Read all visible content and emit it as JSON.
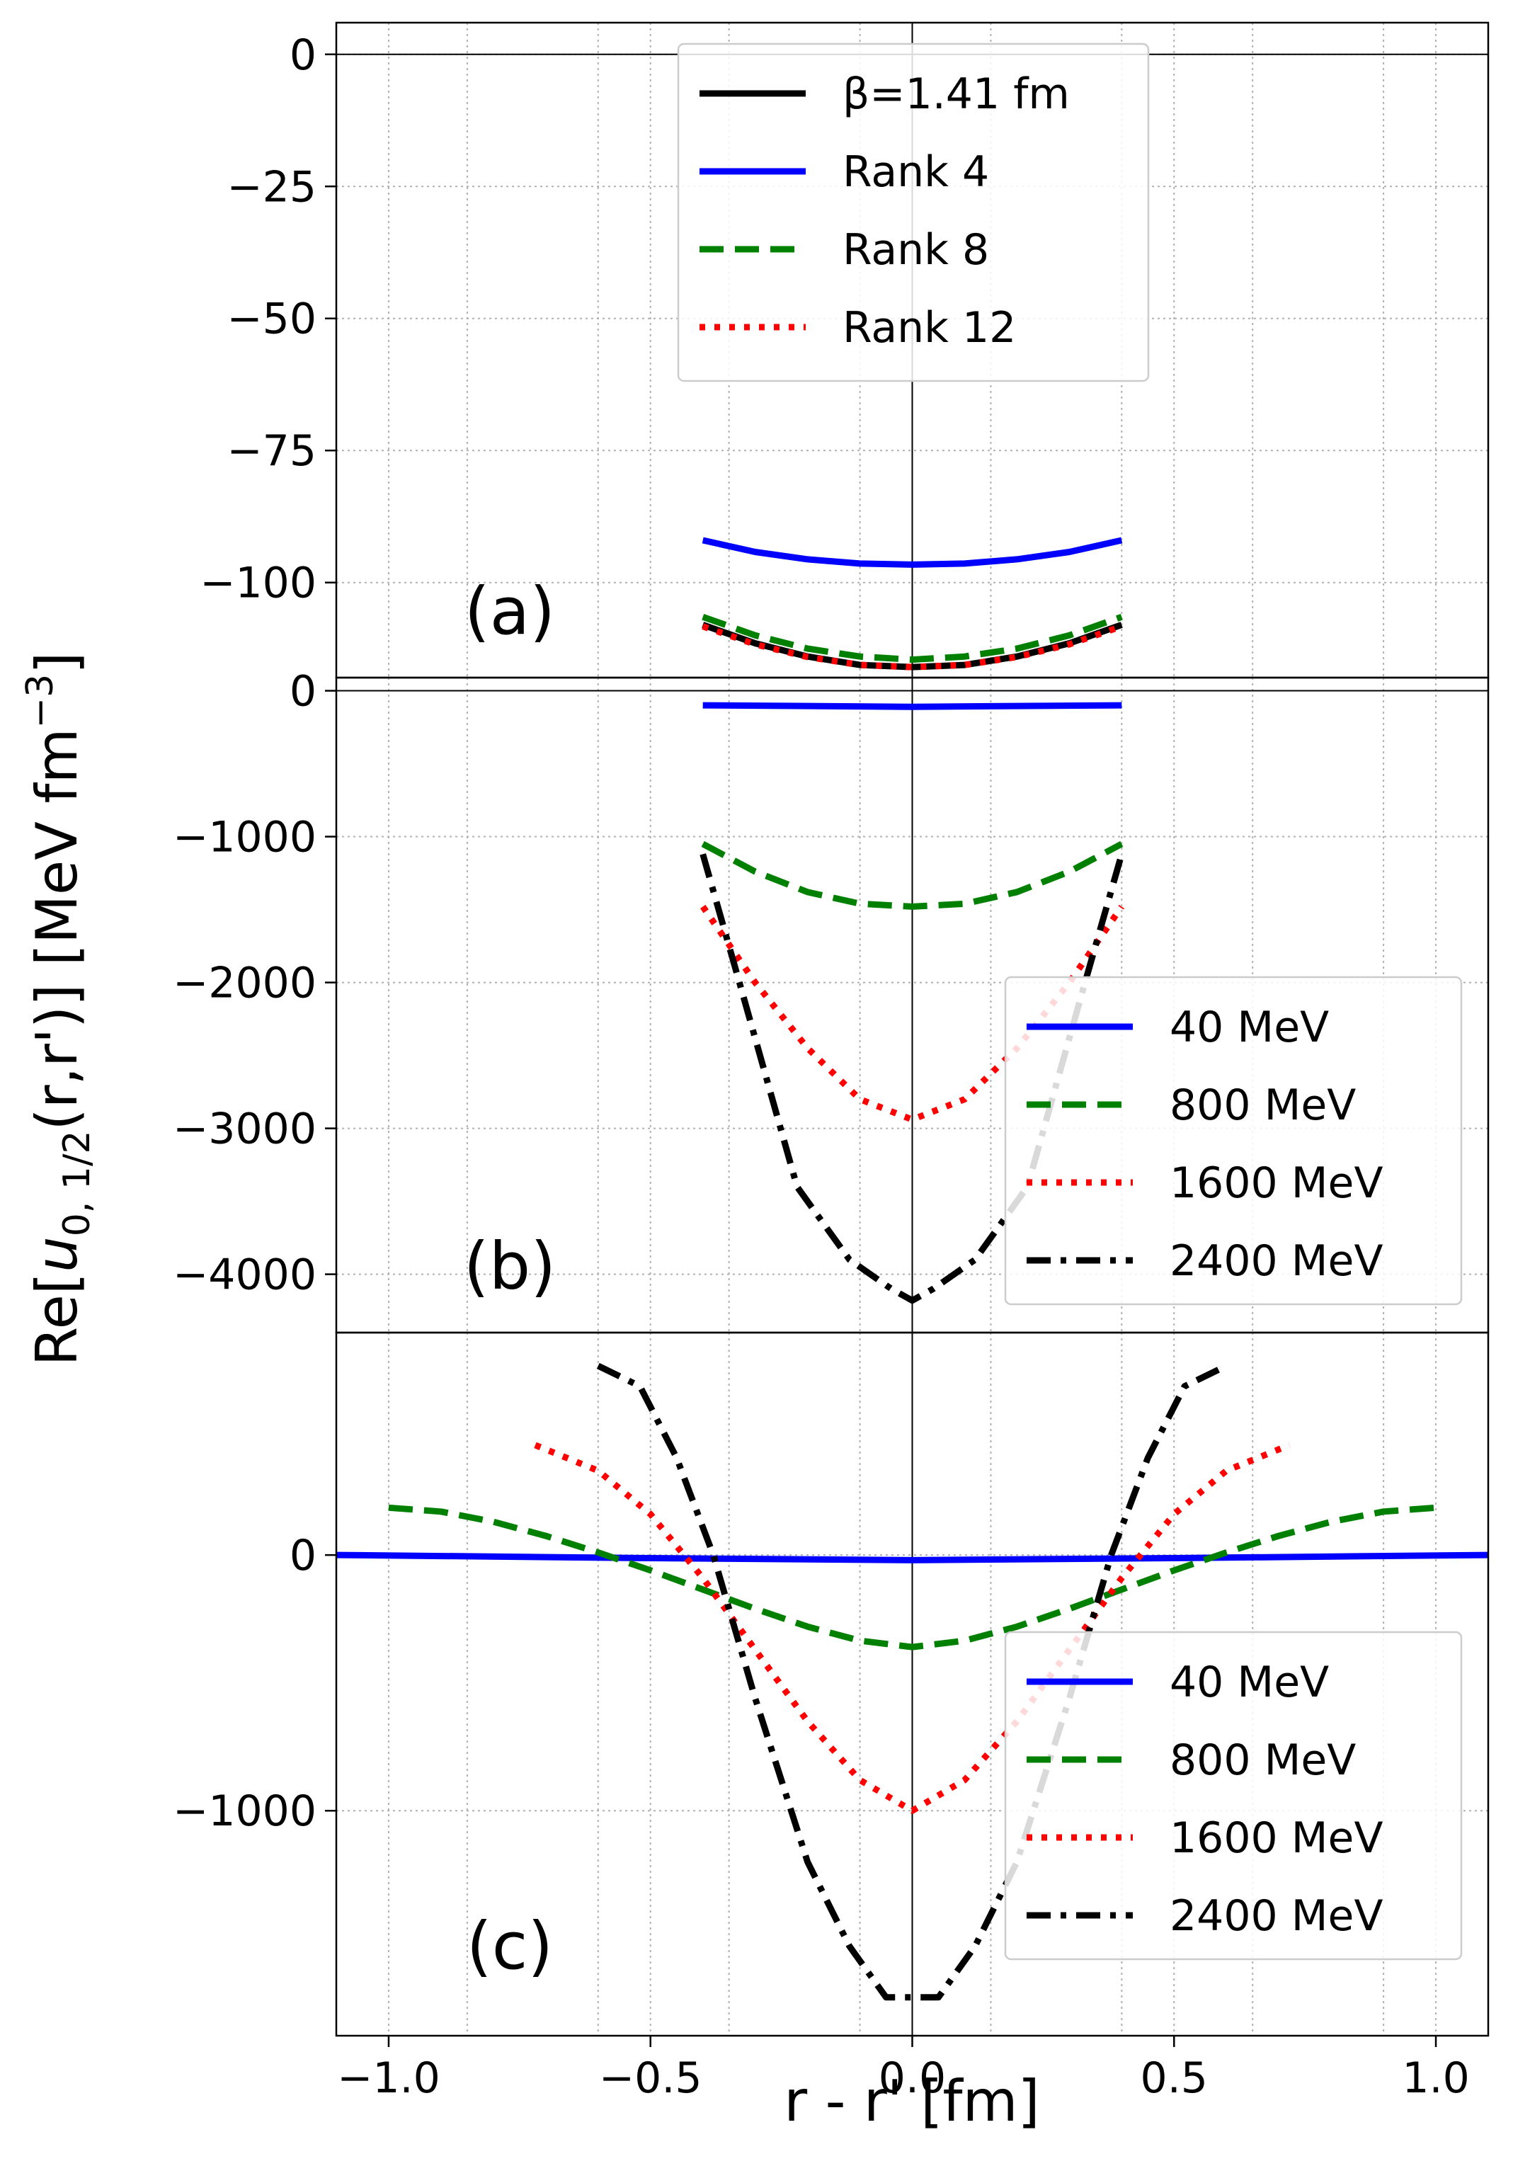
{
  "chart_data": {
    "type": "line",
    "xlabel": "r - r' [fm]",
    "ylabel": "Re[u0,1/2(r,r')] [MeV fm−3]",
    "xlim": [
      -1.1,
      1.1
    ],
    "xticks": [
      -1.0,
      -0.5,
      0.0,
      0.5,
      1.0
    ],
    "xtick_labels": [
      "−1.0",
      "−0.5",
      "0.0",
      "0.5",
      "1.0"
    ],
    "grid": true,
    "panels": [
      {
        "label": "(a)",
        "ylim": [
          -118,
          6
        ],
        "yticks": [
          0,
          -25,
          -50,
          -75,
          -100
        ],
        "ytick_labels": [
          "0",
          "−25",
          "−50",
          "−75",
          "−100"
        ],
        "legend": "top-center",
        "series": [
          {
            "name": "β=1.41 fm",
            "color": "#000000",
            "dash": "solid",
            "x": [
              -0.4,
              -0.3,
              -0.2,
              -0.1,
              0.0,
              0.1,
              0.2,
              0.3,
              0.4
            ],
            "y": [
              -108,
              -111.5,
              -114,
              -115.6,
              -116,
              -115.6,
              -114,
              -111.5,
              -108
            ]
          },
          {
            "name": "Rank 4",
            "color": "#0000ff",
            "dash": "solid",
            "x": [
              -0.4,
              -0.3,
              -0.2,
              -0.1,
              0.0,
              0.1,
              0.2,
              0.3,
              0.4
            ],
            "y": [
              -92,
              -94.2,
              -95.6,
              -96.4,
              -96.6,
              -96.4,
              -95.6,
              -94.2,
              -92
            ]
          },
          {
            "name": "Rank 8",
            "color": "#008000",
            "dash": "dashed",
            "x": [
              -0.4,
              -0.3,
              -0.2,
              -0.1,
              0.0,
              0.1,
              0.2,
              0.3,
              0.4
            ],
            "y": [
              -106.5,
              -110,
              -112.5,
              -114,
              -114.6,
              -114,
              -112.5,
              -110,
              -106.5
            ]
          },
          {
            "name": "Rank 12",
            "color": "#ff0000",
            "dash": "dotted",
            "x": [
              -0.4,
              -0.3,
              -0.2,
              -0.1,
              0.0,
              0.1,
              0.2,
              0.3,
              0.4
            ],
            "y": [
              -108.3,
              -111.7,
              -114.1,
              -115.6,
              -116,
              -115.6,
              -114.1,
              -111.7,
              -108.3
            ]
          }
        ]
      },
      {
        "label": "(b)",
        "ylim": [
          -4400,
          90
        ],
        "yticks": [
          0,
          -1000,
          -2000,
          -3000,
          -4000
        ],
        "ytick_labels": [
          "0",
          "−1000",
          "−2000",
          "−3000",
          "−4000"
        ],
        "legend": "lower-right",
        "series": [
          {
            "name": "40 MeV",
            "color": "#0000ff",
            "dash": "solid",
            "x": [
              -0.4,
              0.0,
              0.4
            ],
            "y": [
              -100,
              -110,
              -100
            ]
          },
          {
            "name": "800 MeV",
            "color": "#008000",
            "dash": "dashed",
            "x": [
              -0.4,
              -0.3,
              -0.2,
              -0.1,
              0.0,
              0.1,
              0.2,
              0.3,
              0.4
            ],
            "y": [
              -1050,
              -1240,
              -1380,
              -1460,
              -1480,
              -1460,
              -1380,
              -1240,
              -1050
            ]
          },
          {
            "name": "1600 MeV",
            "color": "#ff0000",
            "dash": "dotted",
            "x": [
              -0.4,
              -0.3,
              -0.2,
              -0.1,
              0.0,
              0.1,
              0.2,
              0.3,
              0.4
            ],
            "y": [
              -1480,
              -2000,
              -2450,
              -2800,
              -2940,
              -2800,
              -2450,
              -2000,
              -1480
            ]
          },
          {
            "name": "2400 MeV",
            "color": "#000000",
            "dash": "dashdot",
            "x": [
              -0.4,
              -0.33,
              -0.22,
              -0.12,
              -0.04,
              0.0,
              0.04,
              0.12,
              0.22,
              0.33,
              0.4
            ],
            "y": [
              -1120,
              -2000,
              -3400,
              -3900,
              -4100,
              -4180,
              -4100,
              -3900,
              -3400,
              -2000,
              -1120
            ]
          }
        ]
      },
      {
        "label": "(c)",
        "ylim": [
          -1880,
          870
        ],
        "yticks": [
          0,
          -1000
        ],
        "ytick_labels": [
          "0",
          "−1000"
        ],
        "legend": "lower-right",
        "series": [
          {
            "name": "40 MeV",
            "color": "#0000ff",
            "dash": "solid",
            "x": [
              -1.1,
              -0.5,
              0.0,
              0.5,
              1.1
            ],
            "y": [
              0,
              -12,
              -20,
              -12,
              0
            ]
          },
          {
            "name": "800 MeV",
            "color": "#008000",
            "dash": "dashed",
            "x": [
              -1.0,
              -0.9,
              -0.8,
              -0.7,
              -0.6,
              -0.5,
              -0.4,
              -0.3,
              -0.2,
              -0.1,
              0.0,
              0.1,
              0.2,
              0.3,
              0.4,
              0.5,
              0.6,
              0.7,
              0.8,
              0.9,
              1.0
            ],
            "y": [
              185,
              170,
              130,
              75,
              10,
              -60,
              -135,
              -210,
              -280,
              -335,
              -360,
              -335,
              -280,
              -210,
              -135,
              -60,
              10,
              75,
              130,
              170,
              185
            ]
          },
          {
            "name": "1600 MeV",
            "color": "#ff0000",
            "dash": "dotted",
            "x": [
              -0.72,
              -0.6,
              -0.5,
              -0.4,
              -0.3,
              -0.2,
              -0.1,
              0.0,
              0.1,
              0.2,
              0.3,
              0.4,
              0.5,
              0.6,
              0.72
            ],
            "y": [
              430,
              330,
              160,
              -90,
              -370,
              -650,
              -880,
              -1000,
              -880,
              -650,
              -370,
              -90,
              160,
              330,
              430
            ]
          },
          {
            "name": "2400 MeV",
            "color": "#000000",
            "dash": "dashdot",
            "x": [
              -0.6,
              -0.52,
              -0.45,
              -0.38,
              -0.3,
              -0.2,
              -0.12,
              -0.05,
              0.0,
              0.05,
              0.12,
              0.2,
              0.3,
              0.38,
              0.45,
              0.52,
              0.6
            ],
            "y": [
              740,
              660,
              380,
              0,
              -560,
              -1200,
              -1530,
              -1730,
              -1730,
              -1730,
              -1530,
              -1200,
              -560,
              0,
              380,
              660,
              740
            ]
          }
        ]
      }
    ]
  }
}
